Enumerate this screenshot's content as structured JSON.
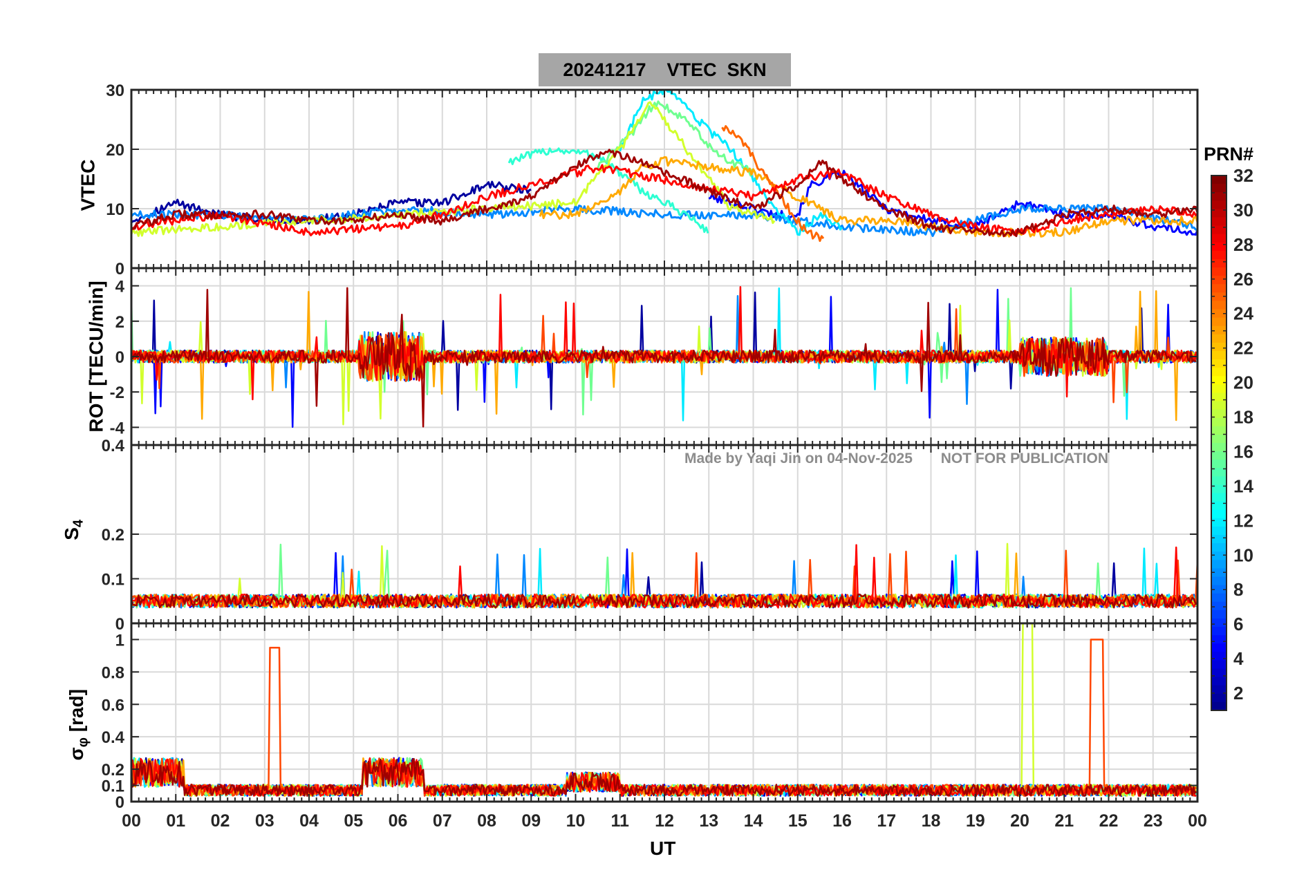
{
  "chart_data": {
    "type": "line",
    "title": "20241217    VTEC  SKN",
    "xlabel": "UT",
    "xlim": [
      0,
      24
    ],
    "x_tick_labels": [
      "00",
      "01",
      "02",
      "03",
      "04",
      "05",
      "06",
      "07",
      "08",
      "09",
      "10",
      "11",
      "12",
      "13",
      "14",
      "15",
      "16",
      "17",
      "18",
      "19",
      "20",
      "21",
      "22",
      "23",
      "00"
    ],
    "colorbar": {
      "title": "PRN#",
      "range": [
        1,
        32
      ],
      "tick_labels": [
        "2",
        "4",
        "6",
        "8",
        "10",
        "12",
        "14",
        "16",
        "18",
        "20",
        "22",
        "24",
        "26",
        "28",
        "30",
        "32"
      ],
      "colormap": "jet"
    },
    "panels": [
      {
        "name": "vtec",
        "ylabel": "VTEC",
        "ylim": [
          0,
          30
        ],
        "y_tick_labels": [
          "0",
          "10",
          "20",
          "30"
        ],
        "series": [
          {
            "prn": 2,
            "x": [
              0,
              1,
              2,
              3,
              4,
              5,
              6,
              7,
              8,
              9
            ],
            "y": [
              8,
              11,
              9,
              8,
              8,
              9,
              11,
              11,
              14,
              13
            ]
          },
          {
            "prn": 5,
            "x": [
              13,
              14,
              14.5,
              15,
              15.3,
              16,
              17,
              18,
              19,
              20,
              21,
              22,
              23,
              24
            ],
            "y": [
              12,
              10,
              9,
              9,
              14,
              16,
              10,
              8,
              7,
              11,
              9,
              9,
              7,
              6
            ]
          },
          {
            "prn": 9,
            "x": [
              0,
              2,
              4,
              6,
              8,
              10,
              12,
              14,
              16,
              18,
              20,
              22,
              24
            ],
            "y": [
              9,
              9,
              8,
              10,
              9,
              10,
              9,
              9,
              7,
              6,
              10,
              10,
              7
            ]
          },
          {
            "prn": 12,
            "x": [
              11,
              11.5,
              12,
              12.5,
              13,
              13.5,
              14,
              14.5,
              15,
              15.5,
              16
            ],
            "y": [
              20,
              28,
              30,
              27,
              23,
              20,
              15,
              10,
              6,
              9,
              7
            ]
          },
          {
            "prn": 14,
            "x": [
              8.5,
              9.5,
              10.5,
              11.5,
              12.5,
              13
            ],
            "y": [
              18,
              20,
              19,
              13,
              9,
              6
            ]
          },
          {
            "prn": 16,
            "x": [
              10.5,
              11.2,
              11.8,
              12.5,
              13.2,
              14
            ],
            "y": [
              17,
              22,
              28,
              25,
              19,
              16
            ]
          },
          {
            "prn": 19,
            "x": [
              0,
              2,
              4,
              6,
              8,
              10,
              11,
              11.7,
              12.5,
              13.5,
              14.5
            ],
            "y": [
              6,
              7,
              8,
              9,
              10,
              11,
              20,
              28,
              20,
              10,
              8
            ]
          },
          {
            "prn": 23,
            "x": [
              9.2,
              10,
              11,
              11.5,
              12,
              13,
              14,
              15,
              16,
              17,
              18,
              19,
              20,
              21,
              22,
              23,
              24
            ],
            "y": [
              9,
              9,
              13,
              17,
              18,
              17,
              16,
              12,
              8,
              8,
              7,
              6,
              6,
              6,
              8,
              8,
              8
            ]
          },
          {
            "prn": 25,
            "x": [
              13.3,
              13.8,
              14.2,
              14.7,
              15.2,
              15.6
            ],
            "y": [
              24,
              21,
              16,
              11,
              6,
              5
            ]
          },
          {
            "prn": 28,
            "x": [
              0,
              2,
              4,
              6,
              7,
              8,
              9,
              10.5,
              14,
              15,
              16,
              17,
              18,
              19,
              20,
              21,
              22,
              23,
              24
            ],
            "y": [
              7,
              9,
              6,
              7,
              9,
              12,
              14,
              17,
              12,
              15,
              16,
              12,
              9,
              7,
              6,
              8,
              9,
              10,
              9
            ]
          },
          {
            "prn": 31,
            "x": [
              0,
              1,
              2,
              3,
              4,
              5,
              6,
              7,
              8,
              9,
              10,
              10.7,
              13,
              14,
              15,
              15.5,
              16,
              17,
              18,
              19,
              20,
              21,
              22,
              23,
              24
            ],
            "y": [
              7,
              9,
              9,
              9,
              8,
              8,
              9,
              8,
              10,
              12,
              17,
              20,
              13,
              10,
              14,
              18,
              15,
              10,
              7,
              6,
              6,
              9,
              10,
              9,
              10
            ]
          }
        ]
      },
      {
        "name": "rot",
        "ylabel": "ROT [TECU/min]",
        "ylim": [
          -5,
          5
        ],
        "y_tick_labels": [
          "-4",
          "-2",
          "0",
          "2",
          "4"
        ]
      },
      {
        "name": "s4",
        "ylabel": "S4",
        "ylim": [
          0,
          0.4
        ],
        "y_tick_labels": [
          "0",
          "0.1",
          "0.2"
        ],
        "top_tick_label": "0.4",
        "watermark": "Made by Yaqi Jin on 04-Nov-2025       NOT FOR PUBLICATION"
      },
      {
        "name": "sigma",
        "ylabel": "σφ [rad]",
        "ylim": [
          0,
          1.1
        ],
        "y_tick_labels": [
          "0",
          "0.1",
          "0.2",
          "0.4",
          "0.6",
          "0.8",
          "1"
        ]
      }
    ]
  }
}
